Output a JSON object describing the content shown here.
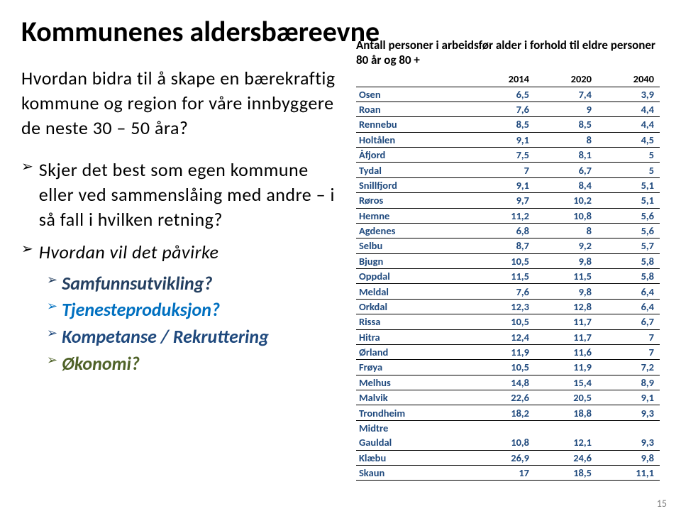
{
  "title": "Kommunenes aldersbæreevne",
  "intro": "Hvordan bidra til å skape en bærekraftig kommune og region for våre innbyggere de neste 30 – 50 åra?",
  "bullet1": "Skjer det best som egen kommune eller ved sammenslåing med andre – i så fall i hvilken retning?",
  "bullet2": "Hvordan vil det påvirke",
  "sub1": {
    "label": "Samfunnsutvikling?",
    "color": "#254061"
  },
  "sub2": {
    "label": "Tjenesteproduksjon?",
    "color": "#0070c0"
  },
  "sub3": {
    "label": "Kompetanse / Rekruttering",
    "color": "#1f497d"
  },
  "sub4": {
    "label": "Økonomi?",
    "color": "#4f6228"
  },
  "table": {
    "caption": "Antall personer i arbeidsfør alder i forhold til eldre personer 80 år og 80 +",
    "headers": [
      "",
      "2014",
      "2020",
      "2040"
    ],
    "rows": [
      {
        "name": "Osen",
        "v": [
          "6,5",
          "7,4",
          "3,9"
        ],
        "color": "#1f497d"
      },
      {
        "name": "Roan",
        "v": [
          "7,6",
          "9",
          "4,4"
        ],
        "color": "#1f497d"
      },
      {
        "name": "Rennebu",
        "v": [
          "8,5",
          "8,5",
          "4,4"
        ],
        "color": "#1f497d"
      },
      {
        "name": "Holtålen",
        "v": [
          "9,1",
          "8",
          "4,5"
        ],
        "color": "#1f497d"
      },
      {
        "name": "Åfjord",
        "v": [
          "7,5",
          "8,1",
          "5"
        ],
        "color": "#1f497d"
      },
      {
        "name": "Tydal",
        "v": [
          "7",
          "6,7",
          "5"
        ],
        "color": "#1f497d"
      },
      {
        "name": "Snillfjord",
        "v": [
          "9,1",
          "8,4",
          "5,1"
        ],
        "color": "#1f497d"
      },
      {
        "name": "Røros",
        "v": [
          "9,7",
          "10,2",
          "5,1"
        ],
        "color": "#1f497d"
      },
      {
        "name": "Hemne",
        "v": [
          "11,2",
          "10,8",
          "5,6"
        ],
        "color": "#1f497d"
      },
      {
        "name": "Agdenes",
        "v": [
          "6,8",
          "8",
          "5,6"
        ],
        "color": "#1f497d"
      },
      {
        "name": "Selbu",
        "v": [
          "8,7",
          "9,2",
          "5,7"
        ],
        "color": "#1f497d"
      },
      {
        "name": "Bjugn",
        "v": [
          "10,5",
          "9,8",
          "5,8"
        ],
        "color": "#1f497d"
      },
      {
        "name": "Oppdal",
        "v": [
          "11,5",
          "11,5",
          "5,8"
        ],
        "color": "#1f497d"
      },
      {
        "name": "Meldal",
        "v": [
          "7,6",
          "9,8",
          "6,4"
        ],
        "color": "#1f497d"
      },
      {
        "name": "Orkdal",
        "v": [
          "12,3",
          "12,8",
          "6,4"
        ],
        "color": "#1f497d"
      },
      {
        "name": "Rissa",
        "v": [
          "10,5",
          "11,7",
          "6,7"
        ],
        "color": "#1f497d"
      },
      {
        "name": "Hitra",
        "v": [
          "12,4",
          "11,7",
          "7"
        ],
        "color": "#1f497d"
      },
      {
        "name": "Ørland",
        "v": [
          "11,9",
          "11,6",
          "7"
        ],
        "color": "#1f497d"
      },
      {
        "name": "Frøya",
        "v": [
          "10,5",
          "11,9",
          "7,2"
        ],
        "color": "#1f497d"
      },
      {
        "name": "Melhus",
        "v": [
          "14,8",
          "15,4",
          "8,9"
        ],
        "color": "#1f497d"
      },
      {
        "name": "Malvik",
        "v": [
          "22,6",
          "20,5",
          "9,1"
        ],
        "color": "#1f497d"
      },
      {
        "name": "Trondheim",
        "v": [
          "18,2",
          "18,8",
          "9,3"
        ],
        "color": "#1f497d"
      },
      {
        "name": "Midtre Gauldal",
        "v": [
          "10,8",
          "12,1",
          "9,3"
        ],
        "color": "#1f497d",
        "wrap": true
      },
      {
        "name": "Klæbu",
        "v": [
          "26,9",
          "24,6",
          "9,8"
        ],
        "color": "#1f497d"
      },
      {
        "name": "Skaun",
        "v": [
          "17",
          "18,5",
          "11,1"
        ],
        "color": "#1f497d"
      }
    ]
  },
  "pageNumber": "15"
}
